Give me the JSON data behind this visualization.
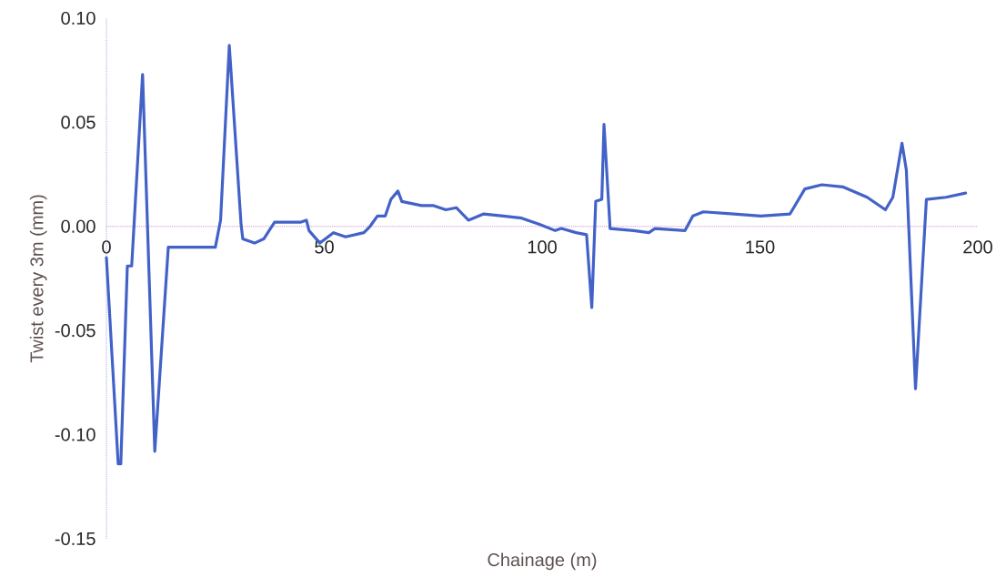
{
  "chart_data": {
    "type": "line",
    "xlabel": "Chainage (m)",
    "ylabel": "Twist every 3m (mm)",
    "x": [
      0,
      2.7,
      3.3,
      4.8,
      5.8,
      8.3,
      11.1,
      14.2,
      25,
      26.2,
      28.2,
      30.9,
      31.3,
      34,
      36.1,
      38.6,
      44.5,
      45.9,
      46.5,
      49,
      52.1,
      54.9,
      59.1,
      60.5,
      62.2,
      64,
      65.3,
      66.9,
      67.8,
      72.3,
      75.1,
      77.9,
      80.3,
      83.1,
      86.6,
      91.1,
      95.3,
      99.4,
      103,
      104.4,
      107.8,
      110.2,
      111.4,
      112.3,
      113.7,
      114.2,
      115.6,
      121,
      124.5,
      125.9,
      132.8,
      134.6,
      137,
      144,
      150.2,
      156.9,
      160.3,
      164.2,
      169,
      174.6,
      178.8,
      180.5,
      182.6,
      183.6,
      185.7,
      188.2,
      192.7,
      197.2
    ],
    "series": [
      {
        "color": "#4262c8",
        "values": [
          -0.015,
          -0.114,
          -0.114,
          -0.019,
          -0.019,
          0.073,
          -0.108,
          -0.01,
          -0.01,
          0.003,
          0.087,
          0.001,
          -0.006,
          -0.008,
          -0.006,
          0.002,
          0.002,
          0.003,
          -0.002,
          -0.008,
          -0.003,
          -0.005,
          -0.003,
          0,
          0.005,
          0.005,
          0.013,
          0.017,
          0.012,
          0.01,
          0.01,
          0.008,
          0.009,
          0.003,
          0.006,
          0.005,
          0.004,
          0.001,
          -0.002,
          -0.001,
          -0.003,
          -0.004,
          -0.039,
          0.012,
          0.013,
          0.049,
          -0.001,
          -0.002,
          -0.003,
          -0.001,
          -0.002,
          0.005,
          0.007,
          0.006,
          0.005,
          0.006,
          0.018,
          0.02,
          0.019,
          0.014,
          0.008,
          0.014,
          0.04,
          0.027,
          -0.078,
          0.013,
          0.014,
          0.016
        ]
      }
    ],
    "xlim": [
      0,
      200
    ],
    "ylim": [
      -0.15,
      0.1
    ],
    "xticks": [
      0,
      50,
      100,
      150,
      200
    ],
    "yticks": [
      {
        "value": 0.1,
        "label": "0.10"
      },
      {
        "value": 0.05,
        "label": "0.05"
      },
      {
        "value": 0.0,
        "label": "0.00"
      },
      {
        "value": -0.05,
        "label": "-0.05"
      },
      {
        "value": -0.1,
        "label": "-0.10"
      },
      {
        "value": -0.15,
        "label": "-0.15"
      }
    ],
    "ref_lines": [
      {
        "axis": "y",
        "value": 0,
        "color": "#c878be",
        "line_style": "dotted"
      },
      {
        "axis": "x",
        "value": 0,
        "color": "#9090d8",
        "line_style": "dotted"
      }
    ],
    "marker": "none",
    "line_style": "solid"
  }
}
